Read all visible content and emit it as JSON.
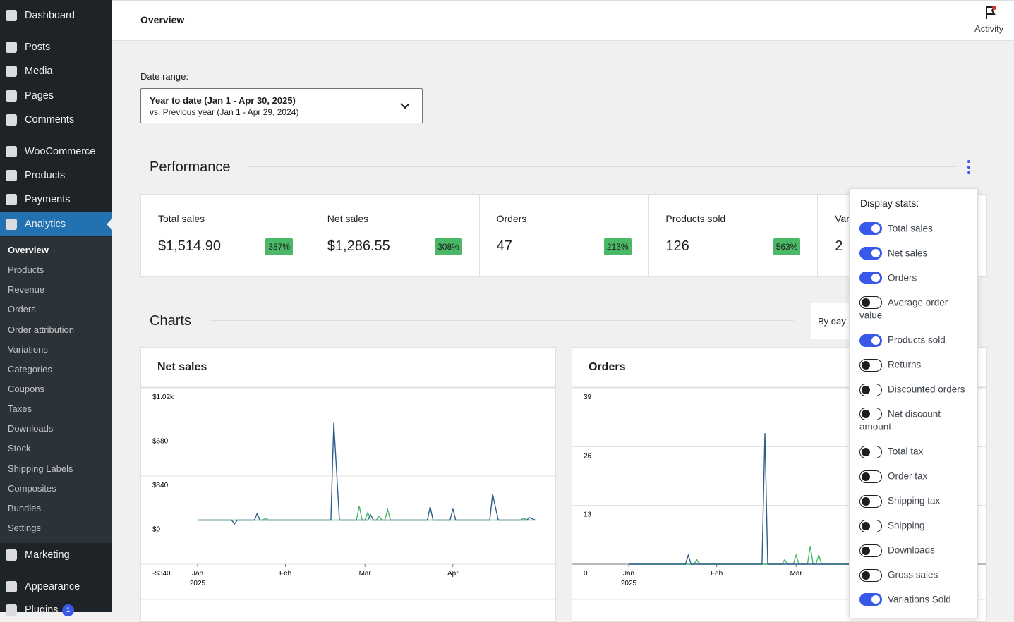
{
  "sidebar": {
    "menu": [
      "Dashboard",
      "Posts",
      "Media",
      "Pages",
      "Comments",
      "WooCommerce",
      "Products",
      "Payments",
      "Analytics"
    ],
    "submenu": [
      "Overview",
      "Products",
      "Revenue",
      "Orders",
      "Order attribution",
      "Variations",
      "Categories",
      "Coupons",
      "Taxes",
      "Downloads",
      "Stock",
      "Shipping Labels",
      "Composites",
      "Bundles",
      "Settings"
    ],
    "menu_after": [
      "Marketing",
      "Appearance",
      "Plugins"
    ],
    "plugins_badge": "1"
  },
  "header": {
    "title": "Overview",
    "activity": "Activity"
  },
  "date_range": {
    "label": "Date range:",
    "primary": "Year to date (Jan 1 - Apr 30, 2025)",
    "compare": "vs. Previous year (Jan 1 - Apr 29, 2024)"
  },
  "performance": {
    "title": "Performance",
    "cards": [
      {
        "label": "Total sales",
        "value": "$1,514.90",
        "delta": "387%"
      },
      {
        "label": "Net sales",
        "value": "$1,286.55",
        "delta": "308%"
      },
      {
        "label": "Orders",
        "value": "47",
        "delta": "213%"
      },
      {
        "label": "Products sold",
        "value": "126",
        "delta": "563%"
      },
      {
        "label": "Variations Sold",
        "value": "2"
      }
    ]
  },
  "charts": {
    "title": "Charts",
    "interval": "By day"
  },
  "chart_data": [
    {
      "type": "line",
      "title": "Net sales",
      "xlim": [
        0,
        119
      ],
      "ylim": [
        -340,
        1020
      ],
      "yticks": [
        {
          "value": 1020,
          "label": "$1.02k"
        },
        {
          "value": 680,
          "label": "$680"
        },
        {
          "value": 340,
          "label": "$340"
        },
        {
          "value": 0,
          "label": "$0"
        },
        {
          "value": -340,
          "label": "-$340"
        }
      ],
      "xticks": [
        {
          "value": 0,
          "label": "Jan",
          "year": "2025"
        },
        {
          "value": 31,
          "label": "Feb"
        },
        {
          "value": 59,
          "label": "Mar"
        },
        {
          "value": 90,
          "label": "Apr"
        }
      ],
      "series": [
        {
          "color": "#4ab866",
          "x": [
            0,
            23,
            24,
            25,
            56,
            57,
            58,
            59,
            60,
            61,
            63,
            64,
            65,
            66,
            67,
            68,
            114,
            115,
            116,
            119
          ],
          "values": [
            0,
            0,
            15,
            0,
            0,
            109,
            0,
            0,
            60,
            0,
            0,
            30,
            0,
            0,
            82,
            0,
            0,
            15,
            0,
            0
          ]
        },
        {
          "color": "#2f5d8c",
          "x": [
            0,
            12,
            13,
            14,
            20,
            21,
            22,
            47,
            48,
            50,
            60,
            61,
            62,
            81,
            82,
            83,
            89,
            90,
            91,
            103,
            104,
            106,
            116,
            117,
            119
          ],
          "values": [
            0,
            0,
            -30,
            0,
            0,
            50,
            0,
            0,
            751,
            0,
            0,
            40,
            0,
            0,
            103,
            0,
            0,
            87,
            0,
            0,
            201,
            0,
            0,
            20,
            0
          ]
        }
      ]
    },
    {
      "type": "line",
      "title": "Orders",
      "xlim": [
        0,
        119
      ],
      "ylim": [
        0,
        39
      ],
      "yticks": [
        39,
        26,
        13,
        0
      ],
      "xticks": [
        {
          "value": 0,
          "label": "Jan",
          "year": "2025"
        },
        {
          "value": 31,
          "label": "Feb"
        },
        {
          "value": 59,
          "label": "Mar"
        },
        {
          "value": 90,
          "label": "Apr"
        }
      ],
      "series": [
        {
          "color": "#4ab866",
          "x": [
            0,
            23,
            24,
            25,
            54,
            55,
            56,
            58,
            59,
            60,
            63,
            64,
            65,
            66,
            67,
            68,
            119
          ],
          "values": [
            0,
            0,
            1,
            0,
            0,
            1,
            0,
            0,
            2,
            0,
            0,
            4,
            0,
            0,
            2,
            0,
            0
          ]
        },
        {
          "color": "#2f5d8c",
          "x": [
            0,
            20,
            21,
            22,
            47,
            48,
            49,
            119
          ],
          "values": [
            0,
            0,
            2,
            0,
            0,
            29,
            0,
            0
          ]
        }
      ]
    }
  ],
  "display_stats": {
    "title": "Display stats:",
    "options": [
      {
        "label": "Total sales",
        "on": true
      },
      {
        "label": "Net sales",
        "on": true
      },
      {
        "label": "Orders",
        "on": true
      },
      {
        "label": "Average order value",
        "on": false
      },
      {
        "label": "Products sold",
        "on": true
      },
      {
        "label": "Returns",
        "on": false
      },
      {
        "label": "Discounted orders",
        "on": false
      },
      {
        "label": "Net discount amount",
        "on": false
      },
      {
        "label": "Total tax",
        "on": false
      },
      {
        "label": "Order tax",
        "on": false
      },
      {
        "label": "Shipping tax",
        "on": false
      },
      {
        "label": "Shipping",
        "on": false
      },
      {
        "label": "Downloads",
        "on": false
      },
      {
        "label": "Gross sales",
        "on": false
      },
      {
        "label": "Variations Sold",
        "on": true
      }
    ]
  }
}
